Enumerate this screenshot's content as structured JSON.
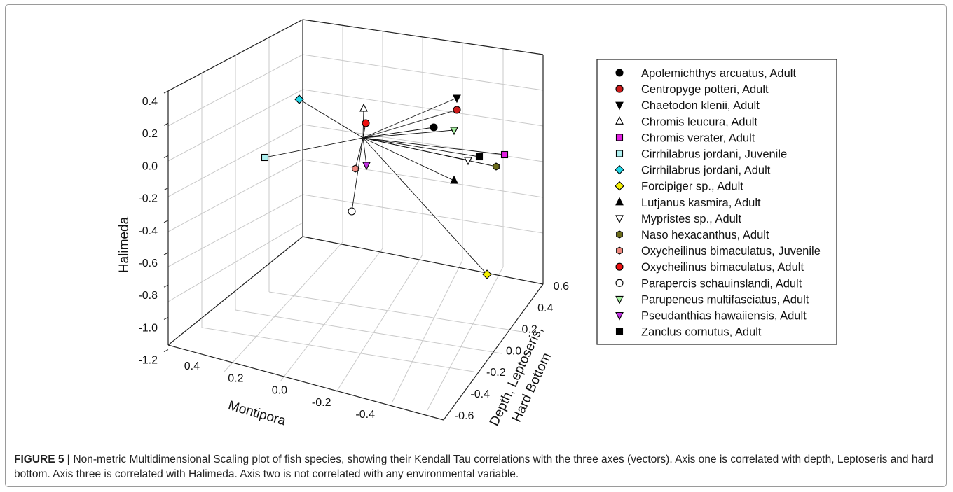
{
  "caption": {
    "label": "FIGURE 5 |",
    "text": " Non-metric Multidimensional Scaling plot of fish species, showing their Kendall Tau correlations with the three axes (vectors). Axis one is correlated with depth, Leptoseris and hard bottom. Axis three is correlated with Halimeda. Axis two is not correlated with any environmental variable."
  },
  "chart_data": {
    "type": "scatter3d-vectors",
    "axes": {
      "z": {
        "label": "Halimeda",
        "ticks": [
          "0.4",
          "0.2",
          "0.0",
          "-0.2",
          "-0.4",
          "-0.6",
          "-0.8",
          "-1.0",
          "-1.2"
        ]
      },
      "x": {
        "label": "Montipora",
        "ticks": [
          "0.4",
          "0.2",
          "0.0",
          "-0.2",
          "-0.4"
        ]
      },
      "y": {
        "label_lines": [
          "Depth, Leptoseris,",
          "Hard Bottom"
        ],
        "ticks": [
          "0.6",
          "0.4",
          "0.2",
          "0.0",
          "-0.2",
          "-0.4",
          "-0.6"
        ]
      }
    },
    "grid": true,
    "legend_placement": "right",
    "series": [
      {
        "name": "Apolemichthys arcuatus, Adult",
        "marker": "circle",
        "fill": "#000000",
        "stroke": "#000000"
      },
      {
        "name": "Centropyge potteri, Adult",
        "marker": "circle",
        "fill": "#cc1a1a",
        "stroke": "#000000"
      },
      {
        "name": "Chaetodon klenii, Adult",
        "marker": "triangle-down",
        "fill": "#000000",
        "stroke": "#000000"
      },
      {
        "name": "Chromis leucura, Adult",
        "marker": "triangle-up",
        "fill": "#ffffff",
        "stroke": "#000000"
      },
      {
        "name": "Chromis verater, Adult",
        "marker": "square",
        "fill": "#e020e0",
        "stroke": "#000000"
      },
      {
        "name": "Cirrhilabrus jordani, Juvenile",
        "marker": "square",
        "fill": "#aef0f0",
        "stroke": "#000000"
      },
      {
        "name": "Cirrhilabrus jordani, Adult",
        "marker": "diamond",
        "fill": "#22d8e8",
        "stroke": "#000000"
      },
      {
        "name": "Forcipiger sp., Adult",
        "marker": "diamond",
        "fill": "#f5f000",
        "stroke": "#000000"
      },
      {
        "name": "Lutjanus kasmira, Adult",
        "marker": "triangle-up",
        "fill": "#000000",
        "stroke": "#000000"
      },
      {
        "name": "Mypristes sp., Adult",
        "marker": "triangle-down",
        "fill": "#ffffff",
        "stroke": "#000000"
      },
      {
        "name": "Naso hexacanthus, Adult",
        "marker": "hexagon",
        "fill": "#6b6b1a",
        "stroke": "#000000"
      },
      {
        "name": "Oxycheilinus bimaculatus, Juvenile",
        "marker": "hexagon",
        "fill": "#f08a80",
        "stroke": "#000000"
      },
      {
        "name": "Oxycheilinus bimaculatus, Adult",
        "marker": "circle",
        "fill": "#ee1111",
        "stroke": "#000000"
      },
      {
        "name": "Parapercis schauinslandi, Adult",
        "marker": "circle",
        "fill": "#ffffff",
        "stroke": "#000000"
      },
      {
        "name": "Parupeneus multifasciatus, Adult",
        "marker": "triangle-down",
        "fill": "#a6f0a0",
        "stroke": "#000000"
      },
      {
        "name": "Pseudanthias hawaiiensis, Adult",
        "marker": "triangle-down",
        "fill": "#c030e0",
        "stroke": "#000000"
      },
      {
        "name": "Zanclus cornutus, Adult",
        "marker": "square",
        "fill": "#000000",
        "stroke": "#000000"
      }
    ]
  }
}
